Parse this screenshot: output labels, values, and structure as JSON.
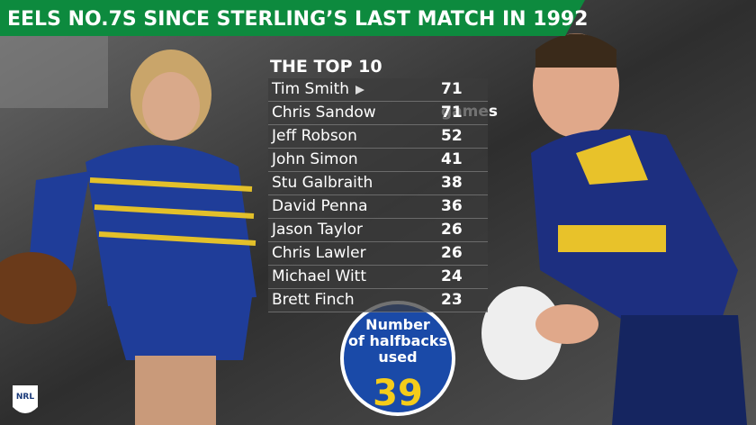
{
  "header": {
    "title": "EELS NO.7S SINCE STERLING’S LAST MATCH IN 1992"
  },
  "table": {
    "heading": "THE TOP 10",
    "rows": [
      {
        "name": "Tim Smith",
        "games": "71 games"
      },
      {
        "name": "Chris Sandow",
        "games": "71"
      },
      {
        "name": "Jeff Robson",
        "games": "52"
      },
      {
        "name": "John Simon",
        "games": "41"
      },
      {
        "name": "Stu Galbraith",
        "games": "38"
      },
      {
        "name": "David Penna",
        "games": "36"
      },
      {
        "name": "Jason Taylor",
        "games": "26"
      },
      {
        "name": "Chris Lawler",
        "games": "26"
      },
      {
        "name": "Michael Witt",
        "games": "24"
      },
      {
        "name": "Brett Finch",
        "games": "23"
      }
    ]
  },
  "badge": {
    "lines": [
      "Number",
      "of halfbacks",
      "used"
    ],
    "number": "39"
  },
  "logo": {
    "text": "NRL"
  }
}
